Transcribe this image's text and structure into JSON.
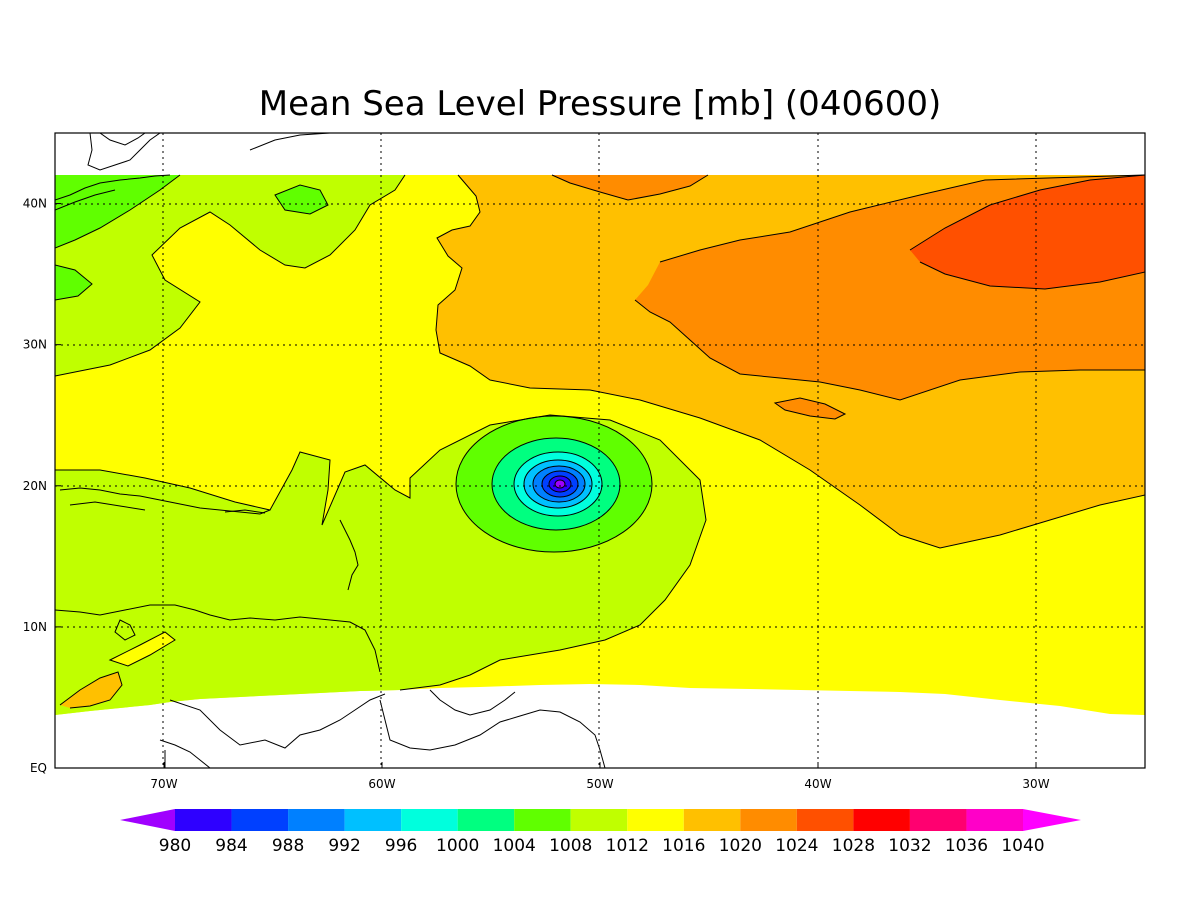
{
  "title": "Mean Sea Level Pressure [mb] (040600)",
  "x_axis": {
    "ticks": [
      {
        "lon": -70,
        "label": "70W"
      },
      {
        "lon": -60,
        "label": "60W"
      },
      {
        "lon": -50,
        "label": "50W"
      },
      {
        "lon": -40,
        "label": "40W"
      },
      {
        "lon": -30,
        "label": "30W"
      }
    ]
  },
  "y_axis": {
    "ticks": [
      {
        "lat": 0,
        "label": "EQ"
      },
      {
        "lat": 10,
        "label": "10N"
      },
      {
        "lat": 20,
        "label": "20N"
      },
      {
        "lat": 30,
        "label": "30N"
      },
      {
        "lat": 40,
        "label": "40N"
      }
    ]
  },
  "colorbar": {
    "levels": [
      "980",
      "984",
      "988",
      "992",
      "996",
      "1000",
      "1004",
      "1008",
      "1012",
      "1016",
      "1020",
      "1024",
      "1028",
      "1032",
      "1036",
      "1040"
    ],
    "colors": [
      "#a000ff",
      "#2e00ff",
      "#0040ff",
      "#0080ff",
      "#00c0ff",
      "#00ffdd",
      "#00ff80",
      "#60ff00",
      "#c0ff00",
      "#ffff00",
      "#ffc000",
      "#ff8c00",
      "#ff5000",
      "#ff0000",
      "#ff0070",
      "#ff00c8",
      "#ff00ff"
    ]
  },
  "chart_data": {
    "type": "filled-contour-map",
    "title": "Mean Sea Level Pressure [mb] (040600)",
    "variable": "Mean Sea Level Pressure",
    "units": "mb",
    "lon_range": [
      -75,
      -25
    ],
    "lat_range": [
      0,
      45
    ],
    "data_lat_range": [
      4,
      42
    ],
    "contour_interval": 4,
    "features": [
      {
        "type": "low",
        "center_lon": -52,
        "center_lat": 20,
        "min_pressure": 980
      },
      {
        "type": "high",
        "center_lon": -30,
        "center_lat": 37,
        "max_pressure": 1028
      }
    ],
    "fill_levels": [
      980,
      984,
      988,
      992,
      996,
      1000,
      1004,
      1008,
      1012,
      1016,
      1020,
      1024,
      1028,
      1032,
      1036,
      1040
    ],
    "grid": true,
    "grid_style": "dotted",
    "colorbar_position": "bottom"
  }
}
